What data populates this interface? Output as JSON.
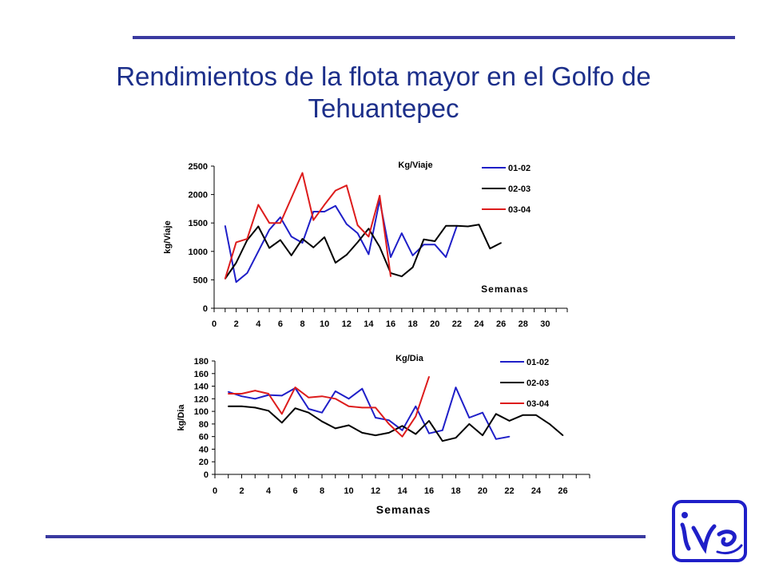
{
  "slide": {
    "title": "Rendimientos de la flota mayor en el Golfo de Tehuantepec"
  },
  "colors": {
    "title": "#1c2f8a",
    "rule": "#3a3aa0",
    "s0102": "#1f1fc8",
    "s0203": "#000000",
    "s0304": "#dd1c1c",
    "logo": "#1f1fc8"
  },
  "logo": {
    "icon": "inp-logo"
  },
  "chart_data": [
    {
      "type": "line",
      "title": "Kg/Viaje",
      "xlabel": "Semanas",
      "ylabel": "kg/Viaje",
      "xlim": [
        0,
        32
      ],
      "ylim": [
        0,
        2500
      ],
      "xticks": [
        0,
        2,
        4,
        6,
        8,
        10,
        12,
        14,
        16,
        18,
        20,
        22,
        24,
        26,
        28,
        30
      ],
      "yticks": [
        0,
        500,
        1000,
        1500,
        2000,
        2500
      ],
      "legend_position": "top-right",
      "series": [
        {
          "name": "01-02",
          "color": "#1f1fc8",
          "x": [
            1,
            2,
            3,
            4,
            5,
            6,
            7,
            8,
            9,
            10,
            11,
            12,
            13,
            14,
            15,
            16,
            17,
            18,
            19,
            20,
            21,
            22
          ],
          "y": [
            1450,
            460,
            620,
            1000,
            1380,
            1600,
            1260,
            1150,
            1700,
            1700,
            1800,
            1480,
            1320,
            950,
            1900,
            900,
            1320,
            930,
            1120,
            1120,
            900,
            1450
          ]
        },
        {
          "name": "02-03",
          "color": "#000000",
          "x": [
            1,
            2,
            3,
            4,
            5,
            6,
            7,
            8,
            9,
            10,
            11,
            12,
            13,
            14,
            15,
            16,
            17,
            18,
            19,
            20,
            21,
            22,
            23,
            24,
            25,
            26
          ],
          "y": [
            520,
            800,
            1200,
            1440,
            1060,
            1200,
            930,
            1220,
            1070,
            1250,
            800,
            940,
            1160,
            1400,
            1080,
            620,
            560,
            720,
            1210,
            1180,
            1450,
            1450,
            1440,
            1470,
            1050,
            1150
          ]
        },
        {
          "name": "03-04",
          "color": "#dd1c1c",
          "x": [
            1,
            2,
            3,
            4,
            5,
            6,
            7,
            8,
            9,
            10,
            11,
            12,
            13,
            14,
            15,
            16
          ],
          "y": [
            520,
            1160,
            1220,
            1820,
            1500,
            1500,
            1940,
            2380,
            1550,
            1820,
            2070,
            2160,
            1460,
            1260,
            1980,
            560
          ]
        }
      ]
    },
    {
      "type": "line",
      "title": "Kg/Dia",
      "xlabel": "Semanas",
      "ylabel": "kg/Dia",
      "xlim": [
        0,
        28
      ],
      "ylim": [
        0,
        180
      ],
      "xticks": [
        0,
        2,
        4,
        6,
        8,
        10,
        12,
        14,
        16,
        18,
        20,
        22,
        24,
        26
      ],
      "yticks": [
        0,
        20,
        40,
        60,
        80,
        100,
        120,
        140,
        160,
        180
      ],
      "legend_position": "top-right",
      "series": [
        {
          "name": "01-02",
          "color": "#1f1fc8",
          "x": [
            1,
            2,
            3,
            4,
            5,
            6,
            7,
            8,
            9,
            10,
            11,
            12,
            13,
            14,
            15,
            16,
            17,
            18,
            19,
            20,
            21,
            22
          ],
          "y": [
            131,
            124,
            120,
            126,
            125,
            137,
            104,
            98,
            132,
            120,
            136,
            90,
            86,
            70,
            108,
            65,
            70,
            138,
            90,
            98,
            56,
            60
          ]
        },
        {
          "name": "02-03",
          "color": "#000000",
          "x": [
            1,
            2,
            3,
            4,
            5,
            6,
            7,
            8,
            9,
            10,
            11,
            12,
            13,
            14,
            15,
            16,
            17,
            18,
            19,
            20,
            21,
            22,
            23,
            24,
            25,
            26
          ],
          "y": [
            108,
            108,
            106,
            101,
            82,
            105,
            98,
            84,
            73,
            78,
            66,
            62,
            66,
            77,
            64,
            85,
            53,
            58,
            80,
            62,
            96,
            85,
            94,
            94,
            80,
            62
          ]
        },
        {
          "name": "03-04",
          "color": "#dd1c1c",
          "x": [
            1,
            2,
            3,
            4,
            5,
            6,
            7,
            8,
            9,
            10,
            11,
            12,
            13,
            14,
            15,
            16
          ],
          "y": [
            128,
            128,
            133,
            128,
            96,
            138,
            122,
            124,
            120,
            108,
            106,
            106,
            80,
            60,
            92,
            155
          ]
        }
      ]
    }
  ]
}
